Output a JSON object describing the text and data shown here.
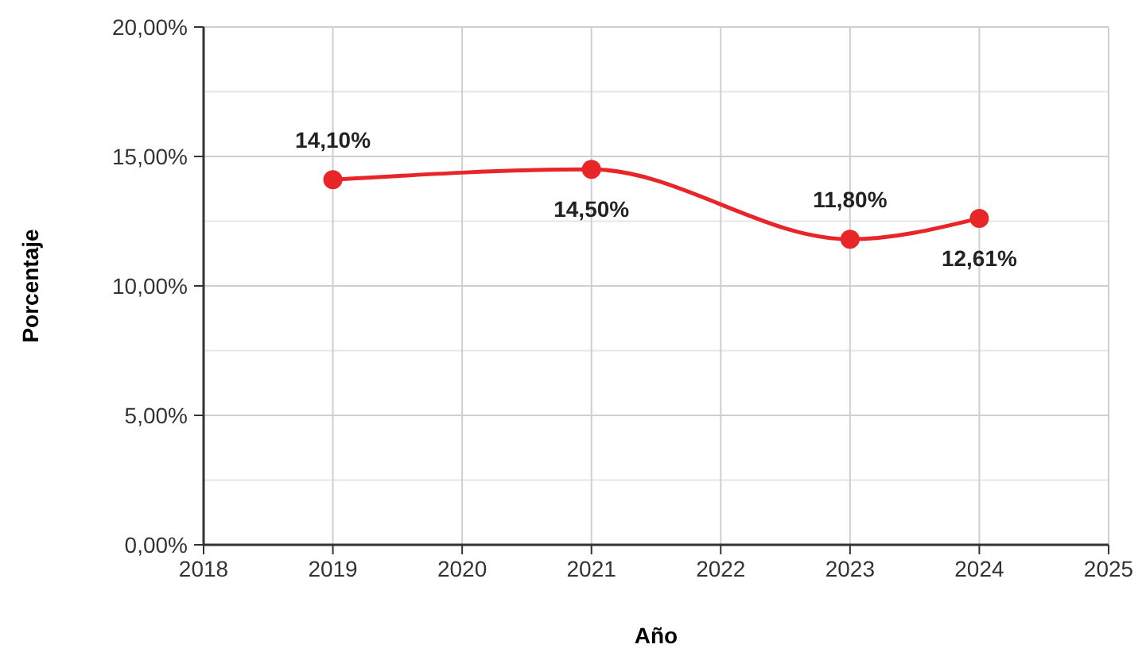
{
  "chart_data": {
    "type": "line",
    "xlabel": "Año",
    "ylabel": "Porcentaje",
    "x": [
      2019,
      2021,
      2023,
      2024
    ],
    "series": [
      {
        "color": "#e8262a",
        "values": [
          14.1,
          14.5,
          11.8,
          12.61
        ],
        "value_labels": [
          "14,10%",
          "14,50%",
          "11,80%",
          "12,61%"
        ]
      }
    ],
    "xlim": [
      2018,
      2025
    ],
    "xticks": [
      2018,
      2019,
      2020,
      2021,
      2022,
      2023,
      2024,
      2025
    ],
    "ylim": [
      0,
      20
    ],
    "yticks": [
      {
        "value": 0,
        "label": "0,00%"
      },
      {
        "value": 2.5,
        "label": null
      },
      {
        "value": 5,
        "label": "5,00%"
      },
      {
        "value": 7.5,
        "label": null
      },
      {
        "value": 10,
        "label": "10,00%"
      },
      {
        "value": 12.5,
        "label": null
      },
      {
        "value": 15,
        "label": "15,00%"
      },
      {
        "value": 17.5,
        "label": null
      },
      {
        "value": 20,
        "label": "20,00%"
      }
    ],
    "grid": true,
    "marker": "circle",
    "line_style": "solid"
  }
}
